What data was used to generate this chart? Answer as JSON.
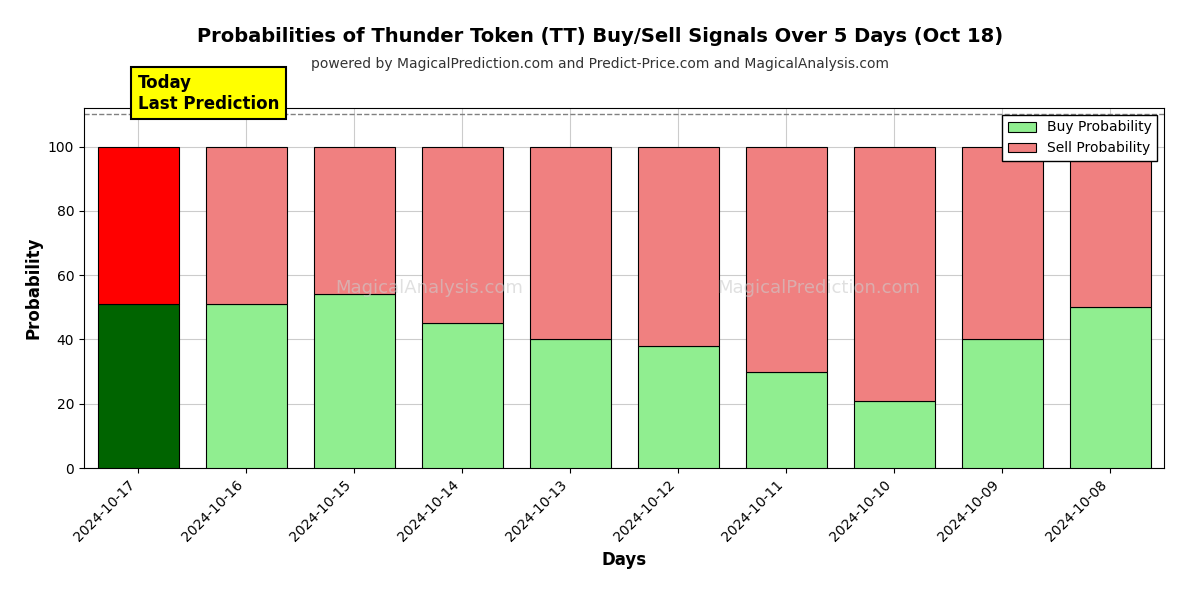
{
  "title": "Probabilities of Thunder Token (TT) Buy/Sell Signals Over 5 Days (Oct 18)",
  "subtitle": "powered by MagicalPrediction.com and Predict-Price.com and MagicalAnalysis.com",
  "xlabel": "Days",
  "ylabel": "Probability",
  "dates": [
    "2024-10-17",
    "2024-10-16",
    "2024-10-15",
    "2024-10-14",
    "2024-10-13",
    "2024-10-12",
    "2024-10-11",
    "2024-10-10",
    "2024-10-09",
    "2024-10-08"
  ],
  "buy_probs": [
    51,
    51,
    54,
    45,
    40,
    38,
    30,
    21,
    40,
    50
  ],
  "sell_probs": [
    49,
    49,
    46,
    55,
    60,
    62,
    70,
    79,
    60,
    50
  ],
  "today_buy_color": "#006400",
  "today_sell_color": "#ff0000",
  "buy_color": "#90EE90",
  "sell_color": "#F08080",
  "today_label": "Today\nLast Prediction",
  "ylim": [
    0,
    112
  ],
  "yticks": [
    0,
    20,
    40,
    60,
    80,
    100
  ],
  "dashed_line_y": 110,
  "bg_color": "#ffffff",
  "grid_color": "#cccccc",
  "bar_edge_color": "#000000",
  "legend_buy_label": "Buy Probability",
  "legend_sell_label": "Sell Probability",
  "watermark1": "MagicalAnalysis.com",
  "watermark2": "MagicalPrediction.com"
}
